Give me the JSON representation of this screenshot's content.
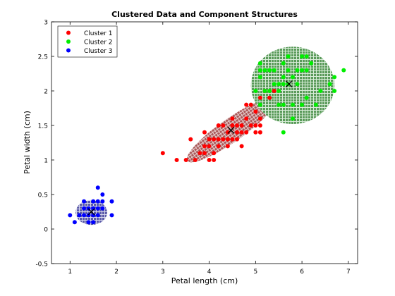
{
  "chart_data": {
    "type": "scatter",
    "title": "Clustered Data and Component Structures",
    "xlabel": "Petal length (cm)",
    "ylabel": "Petal width (cm)",
    "xlim": [
      0.6,
      7.2
    ],
    "ylim": [
      -0.5,
      3
    ],
    "xticks": [
      "1",
      "2",
      "3",
      "4",
      "5",
      "6",
      "7"
    ],
    "yticks": [
      "-0.5",
      "0",
      "0.5",
      "1",
      "1.5",
      "2",
      "2.5",
      "3"
    ],
    "xtick_values": [
      1,
      2,
      3,
      4,
      5,
      6,
      7
    ],
    "ytick_values": [
      -0.5,
      0,
      0.5,
      1,
      1.5,
      2,
      2.5,
      3
    ],
    "grid": false,
    "legend_position": "top-left",
    "series": [
      {
        "name": "Cluster 1",
        "color": "#ff0000",
        "points": [
          [
            3.0,
            1.1
          ],
          [
            3.3,
            1.0
          ],
          [
            3.5,
            1.0
          ],
          [
            3.6,
            1.3
          ],
          [
            3.7,
            1.0
          ],
          [
            3.8,
            1.1
          ],
          [
            3.9,
            1.1
          ],
          [
            3.9,
            1.2
          ],
          [
            3.9,
            1.4
          ],
          [
            4.0,
            1.0
          ],
          [
            4.0,
            1.2
          ],
          [
            4.0,
            1.3
          ],
          [
            4.1,
            1.0
          ],
          [
            4.1,
            1.3
          ],
          [
            4.2,
            1.2
          ],
          [
            4.2,
            1.3
          ],
          [
            4.2,
            1.5
          ],
          [
            4.3,
            1.3
          ],
          [
            4.4,
            1.2
          ],
          [
            4.4,
            1.3
          ],
          [
            4.4,
            1.4
          ],
          [
            4.5,
            1.3
          ],
          [
            4.5,
            1.5
          ],
          [
            4.5,
            1.6
          ],
          [
            4.6,
            1.3
          ],
          [
            4.6,
            1.4
          ],
          [
            4.6,
            1.5
          ],
          [
            4.7,
            1.2
          ],
          [
            4.7,
            1.4
          ],
          [
            4.7,
            1.5
          ],
          [
            4.8,
            1.4
          ],
          [
            4.8,
            1.8
          ],
          [
            4.9,
            1.5
          ],
          [
            4.9,
            1.8
          ],
          [
            5.0,
            1.5
          ],
          [
            5.0,
            1.7
          ],
          [
            5.1,
            1.5
          ],
          [
            5.1,
            1.6
          ],
          [
            5.1,
            1.9
          ],
          [
            5.2,
            2.0
          ],
          [
            5.3,
            1.9
          ],
          [
            5.4,
            2.0
          ],
          [
            5.1,
            1.4
          ],
          [
            5.0,
            1.4
          ],
          [
            4.3,
            1.5
          ],
          [
            4.8,
            1.6
          ],
          [
            4.1,
            1.1
          ]
        ],
        "center": [
          4.47,
          1.43
        ],
        "ellipse": {
          "cx": 4.47,
          "cy": 1.43,
          "rx": 1.15,
          "ry": 0.17,
          "angle_deg": 35
        }
      },
      {
        "name": "Cluster 2",
        "color": "#00ee00",
        "points": [
          [
            5.0,
            2.0
          ],
          [
            5.1,
            1.8
          ],
          [
            5.1,
            2.2
          ],
          [
            5.1,
            2.3
          ],
          [
            5.1,
            2.4
          ],
          [
            5.2,
            2.3
          ],
          [
            5.3,
            2.3
          ],
          [
            5.4,
            2.1
          ],
          [
            5.4,
            2.3
          ],
          [
            5.5,
            1.8
          ],
          [
            5.5,
            2.1
          ],
          [
            5.6,
            1.4
          ],
          [
            5.6,
            1.8
          ],
          [
            5.6,
            2.1
          ],
          [
            5.6,
            2.2
          ],
          [
            5.6,
            2.4
          ],
          [
            5.7,
            2.1
          ],
          [
            5.7,
            2.3
          ],
          [
            5.7,
            2.5
          ],
          [
            5.8,
            1.6
          ],
          [
            5.8,
            1.8
          ],
          [
            5.8,
            2.2
          ],
          [
            5.9,
            2.1
          ],
          [
            5.9,
            2.3
          ],
          [
            6.0,
            1.8
          ],
          [
            6.0,
            2.5
          ],
          [
            6.1,
            1.9
          ],
          [
            6.1,
            2.3
          ],
          [
            6.1,
            2.5
          ],
          [
            6.3,
            1.8
          ],
          [
            6.4,
            2.0
          ],
          [
            6.6,
            2.1
          ],
          [
            6.7,
            2.0
          ],
          [
            6.7,
            2.2
          ],
          [
            6.9,
            2.3
          ],
          [
            5.5,
            2.0
          ],
          [
            5.3,
            2.0
          ],
          [
            6.0,
            2.3
          ],
          [
            6.2,
            2.4
          ],
          [
            5.2,
            2.0
          ]
        ],
        "center": [
          5.72,
          2.1
        ],
        "ellipse": {
          "cx": 5.8,
          "cy": 2.08,
          "rx": 0.9,
          "ry": 0.56,
          "angle_deg": 0
        }
      },
      {
        "name": "Cluster 3",
        "color": "#0000ff",
        "points": [
          [
            1.0,
            0.2
          ],
          [
            1.1,
            0.1
          ],
          [
            1.2,
            0.2
          ],
          [
            1.3,
            0.2
          ],
          [
            1.3,
            0.3
          ],
          [
            1.3,
            0.4
          ],
          [
            1.4,
            0.1
          ],
          [
            1.4,
            0.2
          ],
          [
            1.4,
            0.3
          ],
          [
            1.5,
            0.1
          ],
          [
            1.5,
            0.2
          ],
          [
            1.5,
            0.3
          ],
          [
            1.5,
            0.4
          ],
          [
            1.6,
            0.2
          ],
          [
            1.6,
            0.4
          ],
          [
            1.6,
            0.6
          ],
          [
            1.7,
            0.3
          ],
          [
            1.7,
            0.4
          ],
          [
            1.7,
            0.5
          ],
          [
            1.9,
            0.2
          ],
          [
            1.9,
            0.4
          ],
          [
            1.6,
            0.3
          ]
        ],
        "center": [
          1.46,
          0.25
        ],
        "ellipse": {
          "cx": 1.46,
          "cy": 0.24,
          "rx": 0.34,
          "ry": 0.18,
          "angle_deg": 0
        }
      }
    ]
  }
}
